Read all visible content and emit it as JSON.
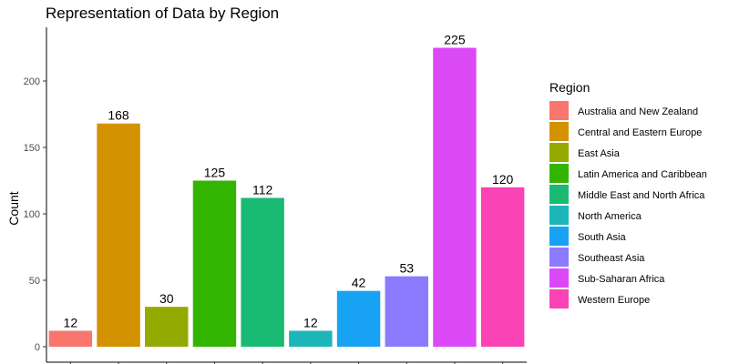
{
  "chart_data": {
    "type": "bar",
    "title": "Representation of Data by Region",
    "xlabel": "",
    "ylabel": "Count",
    "ylim": [
      0,
      237
    ],
    "yticks": [
      0,
      50,
      100,
      150,
      200
    ],
    "grid": false,
    "legend": {
      "title": "Region",
      "placement": "right"
    },
    "categories": [
      "Australia and New Zealand",
      "Central and Eastern Europe",
      "East Asia",
      "Latin America and Caribbean",
      "Middle East and North Africa",
      "North America",
      "South Asia",
      "Southeast Asia",
      "Sub-Saharan Africa",
      "Western Europe"
    ],
    "values": [
      12,
      168,
      30,
      125,
      112,
      12,
      42,
      53,
      225,
      120
    ],
    "colors": [
      "#F8766D",
      "#D39200",
      "#93AA00",
      "#33B400",
      "#19BB74",
      "#1CB6B8",
      "#17A2F4",
      "#8C7AFF",
      "#DB48F6",
      "#FA43B4"
    ]
  }
}
